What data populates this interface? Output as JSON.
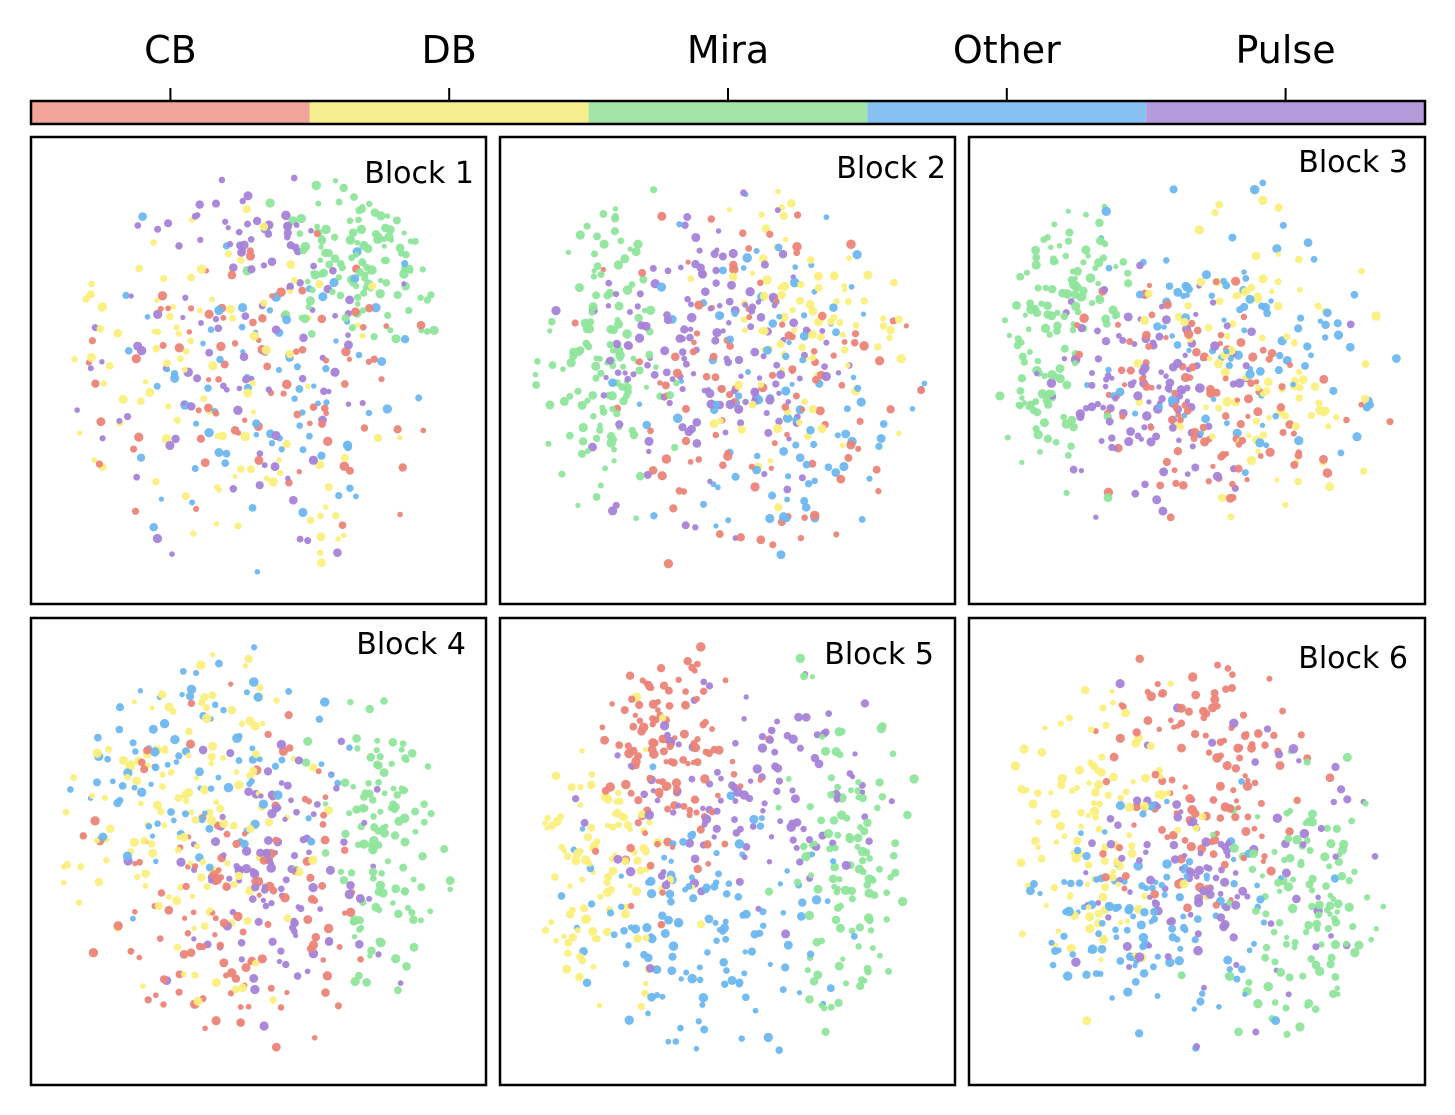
{
  "chart_data": {
    "type": "scatter",
    "legend": {
      "position": "top",
      "labels": [
        "CB",
        "DB",
        "Mira",
        "Other",
        "Pulse"
      ],
      "colors": [
        "#f0a49a",
        "#f7ef8e",
        "#a1e5a9",
        "#87c1f2",
        "#b69bdc"
      ]
    },
    "point_colors": {
      "CB": "#ec8478",
      "DB": "#fbef7c",
      "Mira": "#8ee59b",
      "Other": "#6cb7ef",
      "Pulse": "#a783d8"
    },
    "axes": {
      "ticks": false,
      "grid": false,
      "xlim": [
        -1,
        1
      ],
      "ylim": [
        -1,
        1
      ]
    },
    "panels": [
      {
        "title": "Block 1",
        "clusters": [
          {
            "label": "Mira",
            "cx": 0.55,
            "cy": 0.55,
            "sx": 0.22,
            "sy": 0.2,
            "n": 120
          },
          {
            "label": "Pulse",
            "cx": 0.0,
            "cy": 0.7,
            "sx": 0.18,
            "sy": 0.15,
            "n": 30
          },
          {
            "label": "DB",
            "cx": -0.4,
            "cy": 0.15,
            "sx": 0.4,
            "sy": 0.35,
            "n": 70
          },
          {
            "label": "CB",
            "cx": -0.05,
            "cy": 0.0,
            "sx": 0.45,
            "sy": 0.4,
            "n": 85
          },
          {
            "label": "Pulse",
            "cx": -0.05,
            "cy": 0.0,
            "sx": 0.45,
            "sy": 0.4,
            "n": 85
          },
          {
            "label": "Other",
            "cx": 0.05,
            "cy": -0.1,
            "sx": 0.45,
            "sy": 0.4,
            "n": 80
          },
          {
            "label": "DB",
            "cx": 0.2,
            "cy": -0.55,
            "sx": 0.3,
            "sy": 0.2,
            "n": 30
          }
        ]
      },
      {
        "title": "Block 2",
        "clusters": [
          {
            "label": "Mira",
            "cx": -0.62,
            "cy": 0.05,
            "sx": 0.13,
            "sy": 0.4,
            "n": 130
          },
          {
            "label": "Pulse",
            "cx": -0.05,
            "cy": 0.1,
            "sx": 0.3,
            "sy": 0.35,
            "n": 160
          },
          {
            "label": "DB",
            "cx": 0.4,
            "cy": 0.3,
            "sx": 0.25,
            "sy": 0.35,
            "n": 90
          },
          {
            "label": "CB",
            "cx": 0.1,
            "cy": -0.1,
            "sx": 0.4,
            "sy": 0.45,
            "n": 110
          },
          {
            "label": "Other",
            "cx": 0.3,
            "cy": -0.2,
            "sx": 0.35,
            "sy": 0.45,
            "n": 100
          }
        ]
      },
      {
        "title": "Block 3",
        "clusters": [
          {
            "label": "Mira",
            "cx": -0.6,
            "cy": 0.4,
            "sx": 0.15,
            "sy": 0.2,
            "n": 80
          },
          {
            "label": "Mira",
            "cx": -0.75,
            "cy": -0.1,
            "sx": 0.1,
            "sy": 0.22,
            "n": 60
          },
          {
            "label": "Pulse",
            "cx": -0.2,
            "cy": -0.1,
            "sx": 0.25,
            "sy": 0.25,
            "n": 120
          },
          {
            "label": "CB",
            "cx": 0.1,
            "cy": -0.15,
            "sx": 0.3,
            "sy": 0.25,
            "n": 110
          },
          {
            "label": "DB",
            "cx": 0.35,
            "cy": 0.05,
            "sx": 0.3,
            "sy": 0.4,
            "n": 100
          },
          {
            "label": "Other",
            "cx": 0.3,
            "cy": 0.25,
            "sx": 0.35,
            "sy": 0.35,
            "n": 100
          }
        ]
      },
      {
        "title": "Block 4",
        "clusters": [
          {
            "label": "Mira",
            "cx": 0.6,
            "cy": 0.05,
            "sx": 0.15,
            "sy": 0.35,
            "n": 120
          },
          {
            "label": "DB",
            "cx": -0.4,
            "cy": 0.2,
            "sx": 0.3,
            "sy": 0.4,
            "n": 140
          },
          {
            "label": "Other",
            "cx": -0.3,
            "cy": 0.45,
            "sx": 0.35,
            "sy": 0.3,
            "n": 90
          },
          {
            "label": "CB",
            "cx": -0.1,
            "cy": -0.2,
            "sx": 0.3,
            "sy": 0.4,
            "n": 130
          },
          {
            "label": "Pulse",
            "cx": 0.1,
            "cy": -0.1,
            "sx": 0.25,
            "sy": 0.3,
            "n": 110
          }
        ]
      },
      {
        "title": "Block 5",
        "clusters": [
          {
            "label": "Mira",
            "cx": 0.6,
            "cy": -0.05,
            "sx": 0.15,
            "sy": 0.35,
            "n": 120
          },
          {
            "label": "DB",
            "cx": -0.6,
            "cy": -0.1,
            "sx": 0.18,
            "sy": 0.35,
            "n": 110
          },
          {
            "label": "CB",
            "cx": -0.3,
            "cy": 0.45,
            "sx": 0.2,
            "sy": 0.3,
            "n": 130
          },
          {
            "label": "Pulse",
            "cx": 0.1,
            "cy": 0.25,
            "sx": 0.3,
            "sy": 0.3,
            "n": 120
          },
          {
            "label": "Other",
            "cx": -0.1,
            "cy": -0.35,
            "sx": 0.35,
            "sy": 0.3,
            "n": 130
          }
        ]
      },
      {
        "title": "Block 6",
        "clusters": [
          {
            "label": "Mira",
            "cx": 0.55,
            "cy": -0.3,
            "sx": 0.2,
            "sy": 0.3,
            "n": 120
          },
          {
            "label": "DB",
            "cx": -0.55,
            "cy": 0.2,
            "sx": 0.22,
            "sy": 0.35,
            "n": 120
          },
          {
            "label": "CB",
            "cx": 0.0,
            "cy": 0.35,
            "sx": 0.25,
            "sy": 0.35,
            "n": 130
          },
          {
            "label": "Pulse",
            "cx": 0.1,
            "cy": -0.1,
            "sx": 0.3,
            "sy": 0.3,
            "n": 120
          },
          {
            "label": "Other",
            "cx": -0.3,
            "cy": -0.35,
            "sx": 0.35,
            "sy": 0.25,
            "n": 130
          }
        ]
      }
    ]
  }
}
